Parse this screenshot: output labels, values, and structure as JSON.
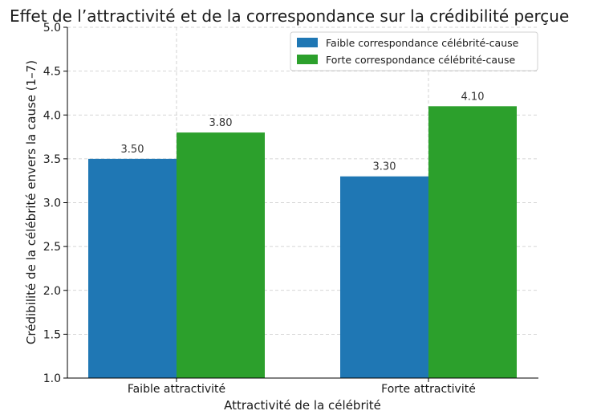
{
  "chart_data": {
    "type": "bar",
    "title": "Effet de l’attractivité et de la correspondance sur la crédibilité perçue",
    "xlabel": "Attractivité de la célébrité",
    "ylabel": "Crédibilité de la célébrité envers la cause (1–7)",
    "categories": [
      "Faible attractivité",
      "Forte attractivité"
    ],
    "series": [
      {
        "name": "Faible correspondance célébrité-cause",
        "color": "#1f77b4",
        "values": [
          3.5,
          3.3
        ],
        "labels": [
          "3.50",
          "3.30"
        ]
      },
      {
        "name": "Forte correspondance célébrité-cause",
        "color": "#2ca02c",
        "values": [
          3.8,
          4.1
        ],
        "labels": [
          "3.80",
          "4.10"
        ]
      }
    ],
    "ylim": [
      1.0,
      5.0
    ],
    "yticks": [
      "1.0",
      "1.5",
      "2.0",
      "2.5",
      "3.0",
      "3.5",
      "4.0",
      "4.5",
      "5.0"
    ],
    "grid": true,
    "legend_position": "top-right"
  }
}
